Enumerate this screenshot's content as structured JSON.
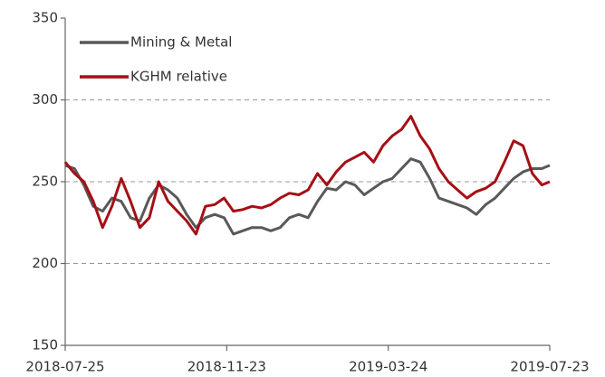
{
  "chart_data": {
    "type": "line",
    "x": [
      "2018-07-25",
      "2018-08-01",
      "2018-08-08",
      "2018-08-15",
      "2018-08-22",
      "2018-08-29",
      "2018-09-05",
      "2018-09-12",
      "2018-09-19",
      "2018-09-26",
      "2018-10-03",
      "2018-10-10",
      "2018-10-17",
      "2018-10-24",
      "2018-10-31",
      "2018-11-07",
      "2018-11-14",
      "2018-11-21",
      "2018-11-28",
      "2018-12-05",
      "2018-12-12",
      "2018-12-19",
      "2018-12-26",
      "2019-01-02",
      "2019-01-09",
      "2019-01-16",
      "2019-01-23",
      "2019-01-30",
      "2019-02-06",
      "2019-02-13",
      "2019-02-20",
      "2019-02-27",
      "2019-03-06",
      "2019-03-13",
      "2019-03-20",
      "2019-03-27",
      "2019-04-03",
      "2019-04-10",
      "2019-04-17",
      "2019-04-24",
      "2019-05-01",
      "2019-05-08",
      "2019-05-15",
      "2019-05-22",
      "2019-05-29",
      "2019-06-05",
      "2019-06-12",
      "2019-06-19",
      "2019-06-26",
      "2019-07-03",
      "2019-07-10",
      "2019-07-17",
      "2019-07-23"
    ],
    "series": [
      {
        "name": "Mining & Metal",
        "color": "#595959",
        "values": [
          260,
          258,
          248,
          235,
          232,
          240,
          238,
          228,
          226,
          240,
          248,
          245,
          240,
          230,
          222,
          228,
          230,
          228,
          218,
          220,
          222,
          222,
          220,
          222,
          228,
          230,
          228,
          238,
          246,
          245,
          250,
          248,
          242,
          246,
          250,
          252,
          258,
          264,
          262,
          252,
          240,
          238,
          236,
          234,
          230,
          236,
          240,
          246,
          252,
          256,
          258,
          258,
          260
        ]
      },
      {
        "name": "KGHM relative",
        "color": "#a50f15",
        "values": [
          262,
          255,
          250,
          238,
          222,
          235,
          252,
          238,
          222,
          228,
          250,
          238,
          232,
          226,
          218,
          235,
          236,
          240,
          232,
          233,
          235,
          234,
          236,
          240,
          243,
          242,
          245,
          255,
          248,
          256,
          262,
          265,
          268,
          262,
          272,
          278,
          282,
          290,
          278,
          270,
          258,
          250,
          245,
          240,
          244,
          246,
          250,
          262,
          275,
          272,
          255,
          248,
          250
        ]
      }
    ],
    "xlim": [
      "2018-07-25",
      "2019-07-23"
    ],
    "xticks": [
      "2018-07-25",
      "2018-11-23",
      "2019-03-24",
      "2019-07-23"
    ],
    "ylim": [
      150,
      350
    ],
    "yticks": [
      150,
      200,
      250,
      300,
      350
    ],
    "grid": true,
    "legend": "upper left"
  }
}
